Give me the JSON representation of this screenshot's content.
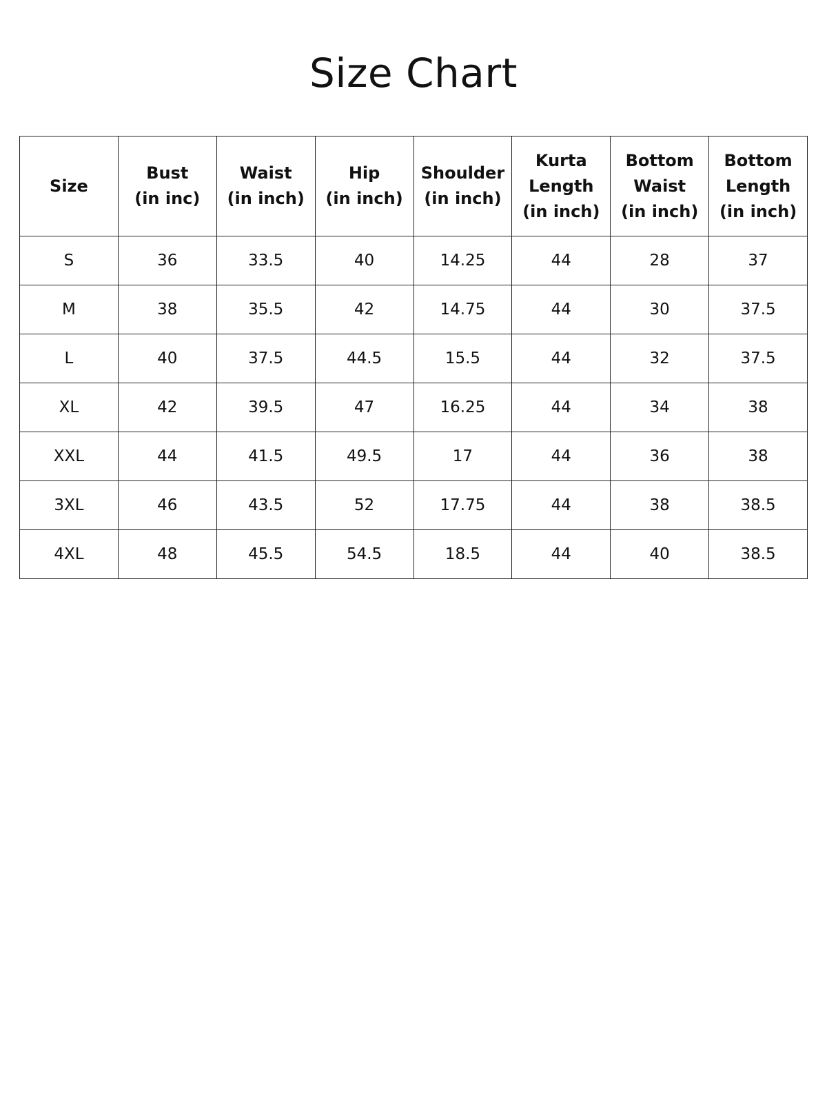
{
  "title": "Size Chart",
  "table": {
    "headers": [
      "Size",
      "Bust\n(in inc)",
      "Waist\n(in inch)",
      "Hip\n(in inch)",
      "Shoulder\n(in inch)",
      "Kurta\nLength\n(in inch)",
      "Bottom\nWaist\n(in inch)",
      "Bottom\nLength\n(in inch)"
    ],
    "rows": [
      [
        "S",
        "36",
        "33.5",
        "40",
        "14.25",
        "44",
        "28",
        "37"
      ],
      [
        "M",
        "38",
        "35.5",
        "42",
        "14.75",
        "44",
        "30",
        "37.5"
      ],
      [
        "L",
        "40",
        "37.5",
        "44.5",
        "15.5",
        "44",
        "32",
        "37.5"
      ],
      [
        "XL",
        "42",
        "39.5",
        "47",
        "16.25",
        "44",
        "34",
        "38"
      ],
      [
        "XXL",
        "44",
        "41.5",
        "49.5",
        "17",
        "44",
        "36",
        "38"
      ],
      [
        "3XL",
        "46",
        "43.5",
        "52",
        "17.75",
        "44",
        "38",
        "38.5"
      ],
      [
        "4XL",
        "48",
        "45.5",
        "54.5",
        "18.5",
        "44",
        "40",
        "38.5"
      ]
    ]
  }
}
